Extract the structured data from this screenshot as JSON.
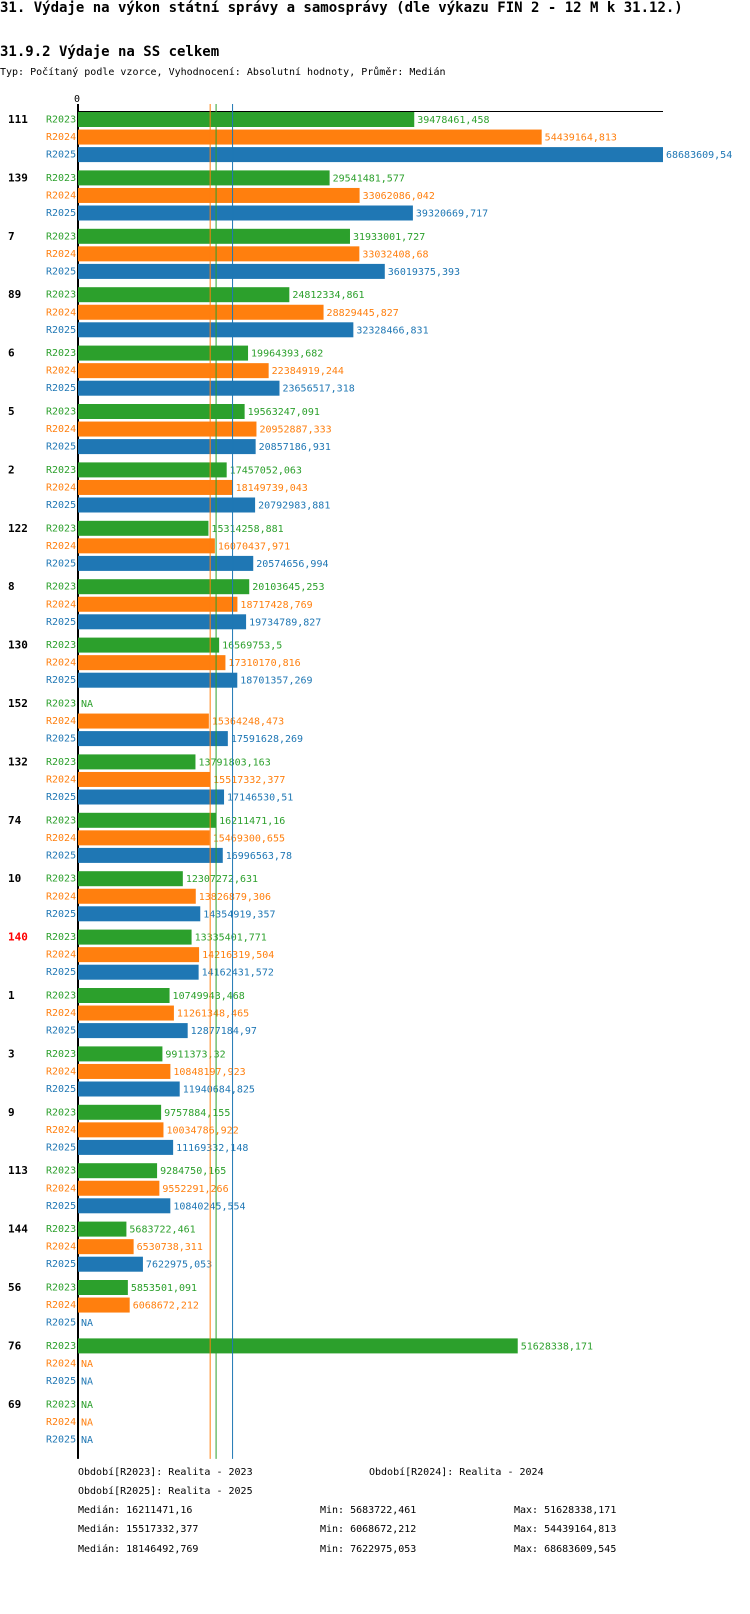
{
  "page": {
    "title": "31. Výdaje na výkon státní správy a samosprávy (dle výkazu FIN 2 - 12 M k 31.12.)",
    "subtitle": "31.9.2 Výdaje na SS celkem",
    "typ": "Typ: Počítaný podle vzorce, Vyhodnocení: Absolutní hodnoty, Průměr: Medián"
  },
  "colors": {
    "R2023": "#2ca02c",
    "R2024": "#ff7f0e",
    "R2025": "#1f77b4",
    "highlight": "#ff0000",
    "axis": "#000000"
  },
  "chart_data": {
    "type": "bar",
    "orientation": "horizontal",
    "axis_zero_label": "0",
    "xlim": [
      0,
      68683609.54
    ],
    "highlight_category": "140",
    "series_names": [
      "R2023",
      "R2024",
      "R2025"
    ],
    "categories": [
      {
        "id": "111",
        "values": [
          39478461.458,
          54439164.813,
          68683609.54
        ],
        "labels": [
          "39478461,458",
          "54439164,813",
          "68683609,54"
        ]
      },
      {
        "id": "139",
        "values": [
          29541481.577,
          33062086.042,
          39320669.717
        ],
        "labels": [
          "29541481,577",
          "33062086,042",
          "39320669,717"
        ]
      },
      {
        "id": "7",
        "values": [
          31933001.727,
          33032408.68,
          36019375.393
        ],
        "labels": [
          "31933001,727",
          "33032408,68",
          "36019375,393"
        ]
      },
      {
        "id": "89",
        "values": [
          24812334.861,
          28829445.827,
          32328466.831
        ],
        "labels": [
          "24812334,861",
          "28829445,827",
          "32328466,831"
        ]
      },
      {
        "id": "6",
        "values": [
          19964393.682,
          22384919.244,
          23656517.318
        ],
        "labels": [
          "19964393,682",
          "22384919,244",
          "23656517,318"
        ]
      },
      {
        "id": "5",
        "values": [
          19563247.091,
          20952887.333,
          20857186.931
        ],
        "labels": [
          "19563247,091",
          "20952887,333",
          "20857186,931"
        ]
      },
      {
        "id": "2",
        "values": [
          17457052.063,
          18149739.043,
          20792983.881
        ],
        "labels": [
          "17457052,063",
          "18149739,043",
          "20792983,881"
        ]
      },
      {
        "id": "122",
        "values": [
          15314258.881,
          16070437.971,
          20574656.994
        ],
        "labels": [
          "15314258,881",
          "16070437,971",
          "20574656,994"
        ]
      },
      {
        "id": "8",
        "values": [
          20103645.253,
          18717428.769,
          19734789.827
        ],
        "labels": [
          "20103645,253",
          "18717428,769",
          "19734789,827"
        ]
      },
      {
        "id": "130",
        "values": [
          16569753.5,
          17310170.816,
          18701357.269
        ],
        "labels": [
          "16569753,5",
          "17310170,816",
          "18701357,269"
        ]
      },
      {
        "id": "152",
        "values": [
          null,
          15364248.473,
          17591628.269
        ],
        "labels": [
          "NA",
          "15364248,473",
          "17591628,269"
        ]
      },
      {
        "id": "132",
        "values": [
          13791803.163,
          15517332.377,
          17146530.51
        ],
        "labels": [
          "13791803,163",
          "15517332,377",
          "17146530,51"
        ]
      },
      {
        "id": "74",
        "values": [
          16211471.16,
          15469300.655,
          16996563.78
        ],
        "labels": [
          "16211471,16",
          "15469300,655",
          "16996563,78"
        ]
      },
      {
        "id": "10",
        "values": [
          12307272.631,
          13826879.306,
          14354919.357
        ],
        "labels": [
          "12307272,631",
          "13826879,306",
          "14354919,357"
        ]
      },
      {
        "id": "140",
        "values": [
          13335401.771,
          14216319.504,
          14162431.572
        ],
        "labels": [
          "13335401,771",
          "14216319,504",
          "14162431,572"
        ]
      },
      {
        "id": "1",
        "values": [
          10749943.468,
          11261348.465,
          12877184.97
        ],
        "labels": [
          "10749943,468",
          "11261348,465",
          "12877184,97"
        ]
      },
      {
        "id": "3",
        "values": [
          9911373.32,
          10848197.923,
          11940684.825
        ],
        "labels": [
          "9911373,32",
          "10848197,923",
          "11940684,825"
        ]
      },
      {
        "id": "9",
        "values": [
          9757884.155,
          10034786.922,
          11169332.148
        ],
        "labels": [
          "9757884,155",
          "10034786,922",
          "11169332,148"
        ]
      },
      {
        "id": "113",
        "values": [
          9284750.165,
          9552291.266,
          10840245.554
        ],
        "labels": [
          "9284750,165",
          "9552291,266",
          "10840245,554"
        ]
      },
      {
        "id": "144",
        "values": [
          5683722.461,
          6530738.311,
          7622975.053
        ],
        "labels": [
          "5683722,461",
          "6530738,311",
          "7622975,053"
        ]
      },
      {
        "id": "56",
        "values": [
          5853501.091,
          6068672.212,
          null
        ],
        "labels": [
          "5853501,091",
          "6068672,212",
          "NA"
        ]
      },
      {
        "id": "76",
        "values": [
          51628338.171,
          null,
          null
        ],
        "labels": [
          "51628338,171",
          "NA",
          "NA"
        ]
      },
      {
        "id": "69",
        "values": [
          null,
          null,
          null
        ],
        "labels": [
          "NA",
          "NA",
          "NA"
        ]
      }
    ],
    "medians": [
      16211471.16,
      15517332.377,
      18146492.769
    ]
  },
  "legend": {
    "r2023": "Období[R2023]: Realita - 2023",
    "r2024": "Období[R2024]: Realita - 2024",
    "r2025": "Období[R2025]: Realita - 2025"
  },
  "stats": [
    {
      "median": "Medián: 16211471,16",
      "min": "Min: 5683722,461",
      "max": "Max: 51628338,171"
    },
    {
      "median": "Medián: 15517332,377",
      "min": "Min: 6068672,212",
      "max": "Max: 54439164,813"
    },
    {
      "median": "Medián: 18146492,769",
      "min": "Min: 7622975,053",
      "max": "Max: 68683609,545"
    }
  ]
}
